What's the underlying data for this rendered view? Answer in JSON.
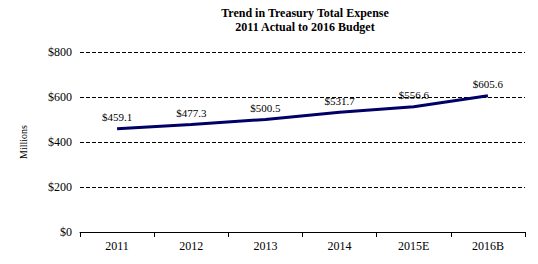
{
  "chart_data": {
    "type": "line",
    "title": "Trend in Treasury Total Expense",
    "subtitle": "2011 Actual to 2016 Budget",
    "ylabel": "Millions",
    "categories": [
      "2011",
      "2012",
      "2013",
      "2014",
      "2015E",
      "2016B"
    ],
    "values": [
      459.1,
      477.3,
      500.5,
      531.7,
      556.6,
      605.6
    ],
    "value_labels": [
      "$459.1",
      "$477.3",
      "$500.5",
      "$531.7",
      "$556.6",
      "$605.6"
    ],
    "data_labels": true,
    "color": "#000066",
    "marker": "none",
    "line_style": "solid",
    "ylim": [
      0,
      800
    ],
    "yticks": [
      {
        "value": 0,
        "label": "$0"
      },
      {
        "value": 200,
        "label": "$200"
      },
      {
        "value": 400,
        "label": "$400"
      },
      {
        "value": 600,
        "label": "$600"
      },
      {
        "value": 800,
        "label": "$800"
      }
    ],
    "grid": true
  }
}
